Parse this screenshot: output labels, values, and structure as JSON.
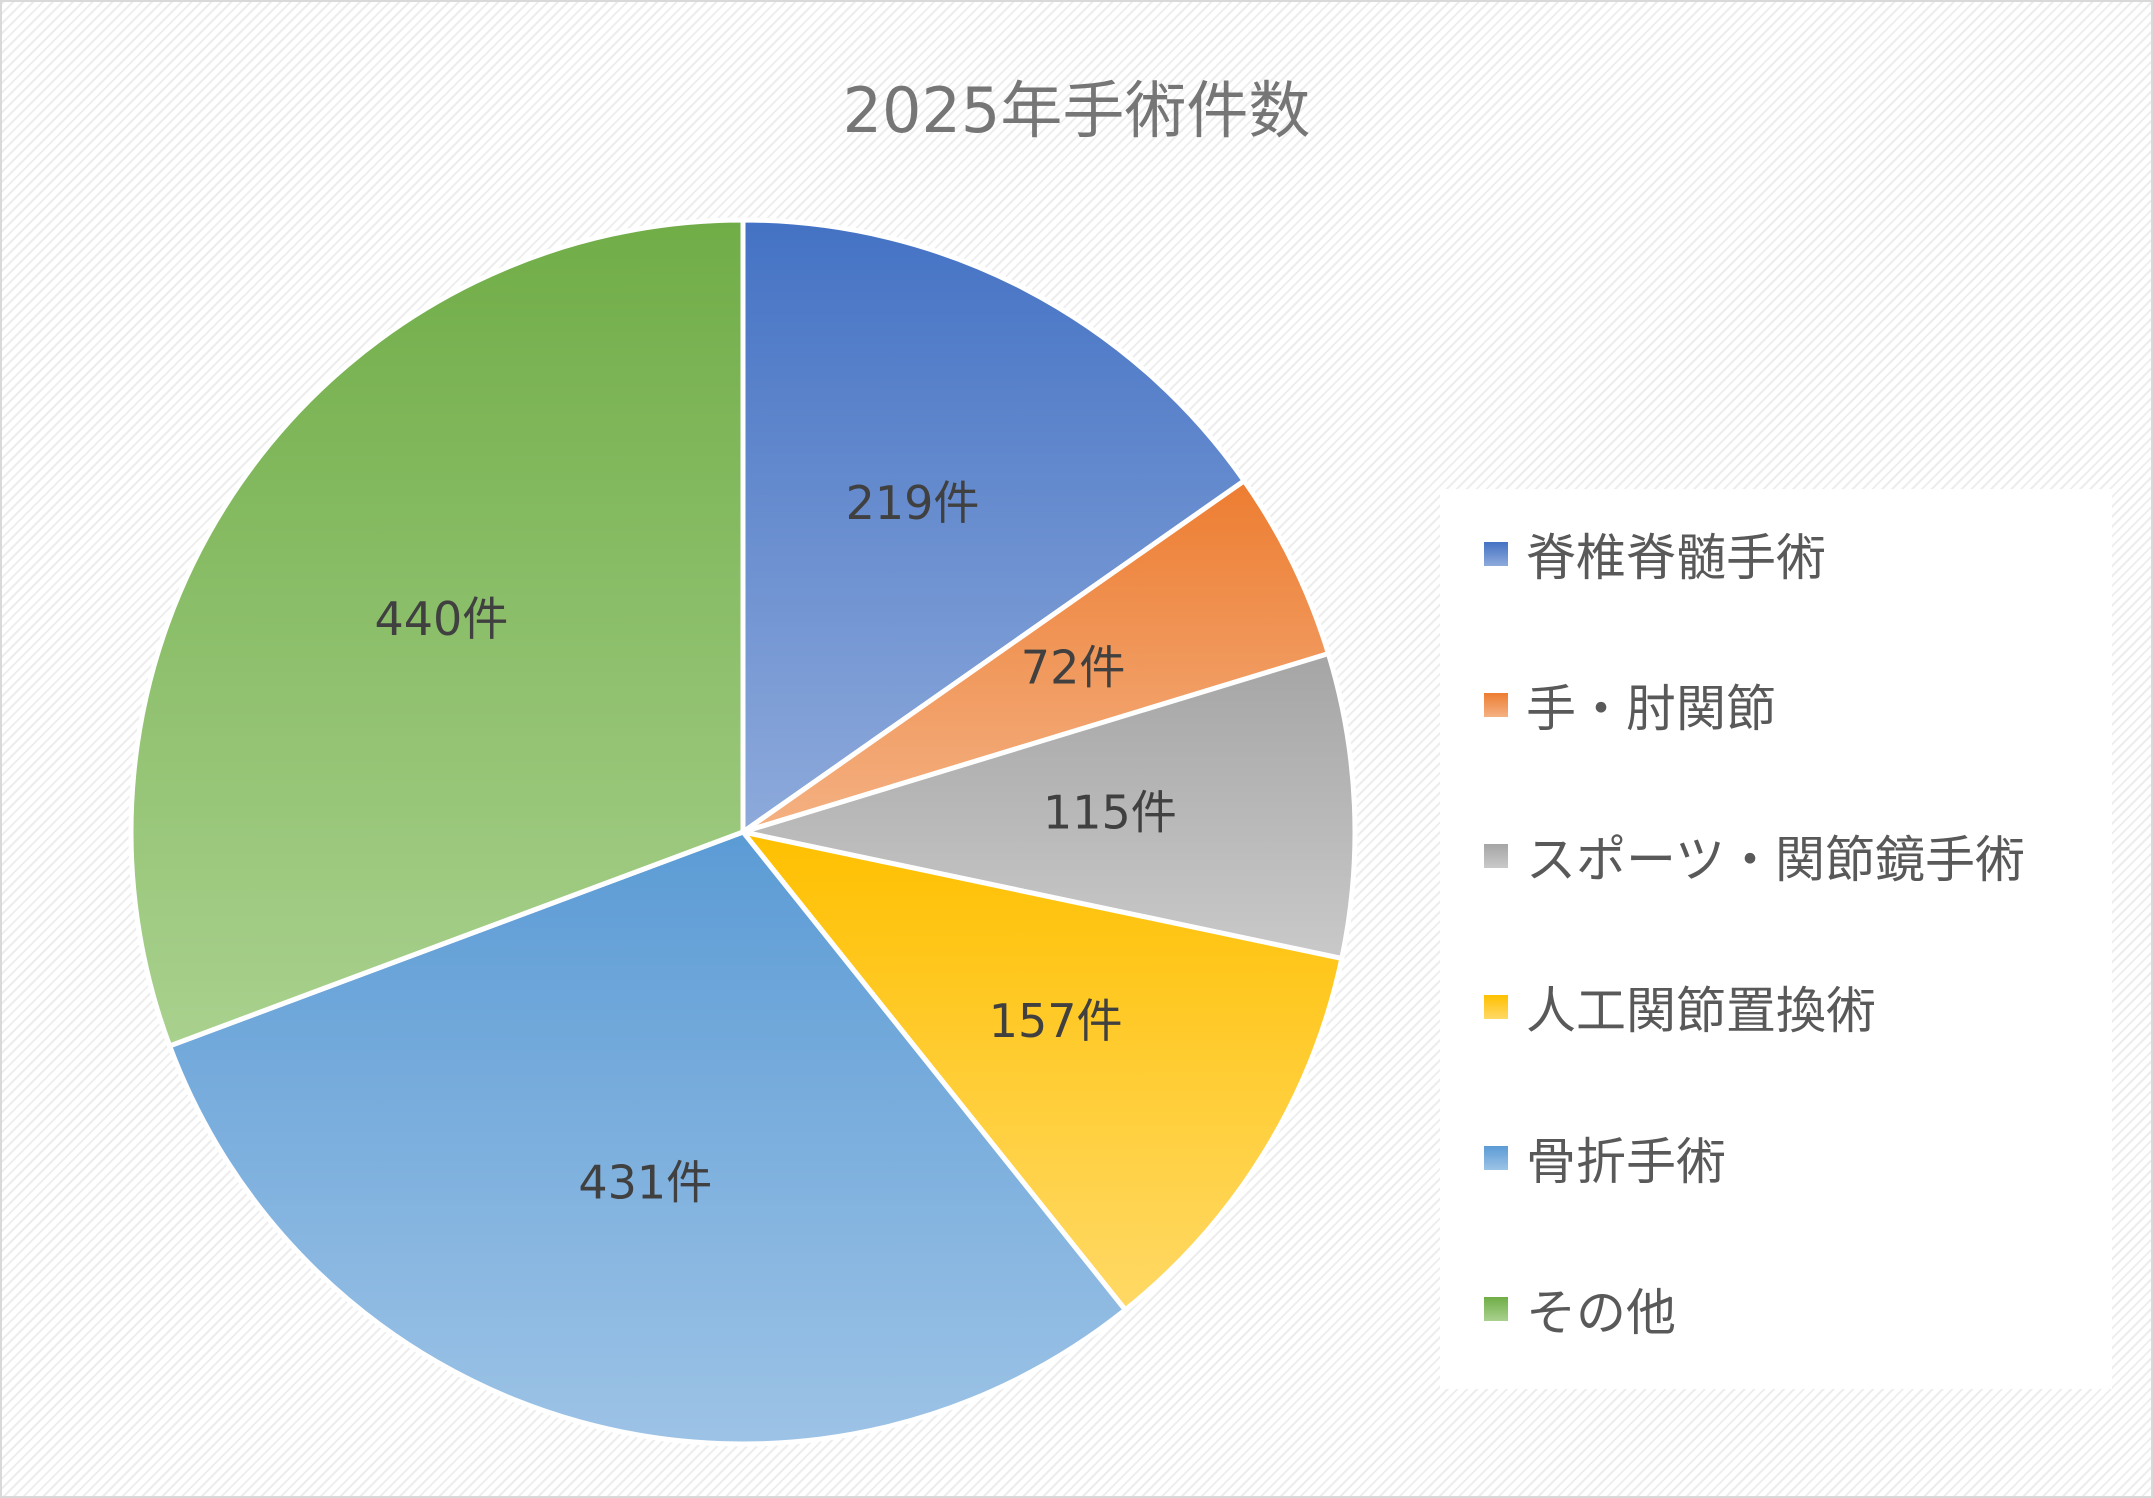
{
  "chart_data": {
    "type": "pie",
    "title": "2025年手術件数",
    "categories": [
      "脊椎脊髄手術",
      "手・肘関節",
      "スポーツ・関節鏡手術",
      "人工関節置換術",
      "骨折手術",
      "その他"
    ],
    "values": [
      219,
      72,
      115,
      157,
      431,
      440
    ],
    "data_labels": [
      "219件",
      "72件",
      "115件",
      "157件",
      "431件",
      "440件"
    ],
    "colors": [
      "#4472c4",
      "#ed7d31",
      "#a5a5a5",
      "#ffc000",
      "#5b9bd5",
      "#70ad47"
    ],
    "colors_light": [
      "#8eaadb",
      "#f4b183",
      "#c9c9c9",
      "#ffd966",
      "#9dc3e6",
      "#a9d18e"
    ],
    "legend_position": "right"
  }
}
